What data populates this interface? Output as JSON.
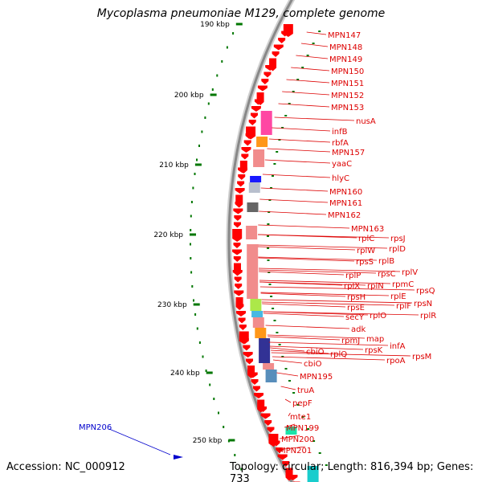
{
  "title": "Mycoplasma pneumoniae M129, complete genome",
  "accession": "Accession: NC_000912",
  "summary": "Topology: circular; Length: 816,394 bp; Genes: 733",
  "highlight_gene": "MPN206",
  "scale": [
    "190 kbp",
    "200 kbp",
    "210 kbp",
    "220 kbp",
    "230 kbp",
    "240 kbp",
    "250 kbp"
  ],
  "gene_labels": [
    "MPN147",
    "MPN148",
    "MPN149",
    "MPN150",
    "MPN151",
    "MPN152",
    "MPN153",
    "nusA",
    "infB",
    "rbfA",
    "MPN157",
    "yaaC",
    "hlyC",
    "MPN160",
    "MPN161",
    "MPN162",
    "MPN163",
    "rplC",
    "rpsJ",
    "rplW",
    "rplD",
    "rpsS",
    "rplB",
    "rplP",
    "rpsC",
    "rplV",
    "rplX",
    "rplN",
    "rpmC",
    "rpsQ",
    "rpsH",
    "rplE",
    "rpsN",
    "rpsE",
    "rplF",
    "rplR",
    "secY",
    "rplO",
    "adk",
    "rpmJ",
    "map",
    "rpsK",
    "infA",
    "cbiO",
    "rplQ",
    "rpoA",
    "rpsM",
    "cbiO",
    "MPN195",
    "truA",
    "pepF",
    "mte1",
    "MPN199",
    "MPN200",
    "MPN201"
  ],
  "colors": {
    "gene": "#ff0000",
    "label": "#dd0000",
    "highlight": "#0000cc",
    "tick": "#007700",
    "backbone": "#888888"
  }
}
